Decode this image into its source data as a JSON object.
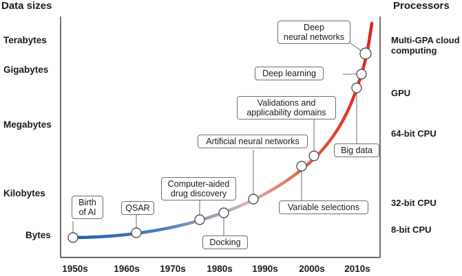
{
  "headers": {
    "left": "Data sizes",
    "right": "Processors"
  },
  "data_sizes": [
    "Terabytes",
    "Gigabytes",
    "Megabytes",
    "Kilobytes",
    "Bytes"
  ],
  "processors": {
    "multi_gpa_line1": "Multi-GPA cloud",
    "multi_gpa_line2": "computing",
    "gpu": "GPU",
    "cpu64": "64-bit CPU",
    "cpu32": "32-bit CPU",
    "cpu8": "8-bit CPU"
  },
  "decades": [
    "1950s",
    "1960s",
    "1970s",
    "1980s",
    "1990s",
    "2000s",
    "2010s"
  ],
  "milestones": {
    "birth_ai_line1": "Birth",
    "birth_ai_line2": "of AI",
    "qsar": "QSAR",
    "cadd_line1": "Computer-aided",
    "cadd_line2": "drug discovery",
    "docking": "Docking",
    "ann": "Artificial neural networks",
    "validations_line1": "Validations and",
    "validations_line2": "applicability domains",
    "variable_selections": "Variable selections",
    "big_data": "Big data",
    "deep_learning": "Deep learning",
    "dnn_line1": "Deep",
    "dnn_line2": "neural networks"
  },
  "colors": {
    "curve_start": "#1560a8",
    "curve_mid": "#d9b3a8",
    "curve_end": "#e02020",
    "axis": "#333333",
    "leader": "#777777"
  }
}
